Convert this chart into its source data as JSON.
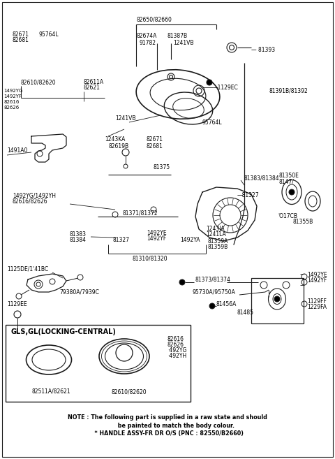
{
  "bg_color": "#ffffff",
  "fig_width": 4.8,
  "fig_height": 6.57,
  "dpi": 100,
  "line_color": "#1a1a1a",
  "text_color": "#000000",
  "note1": "NOTE : The following part is supplied in a raw state and should",
  "note2": "         be painted to match the body colour.",
  "note3": "  * HANDLE ASSY-FR DR O/S (PNC : 82550/B2660)",
  "inset_title": "GLS,GL(LOCKING-CENTRAL)"
}
